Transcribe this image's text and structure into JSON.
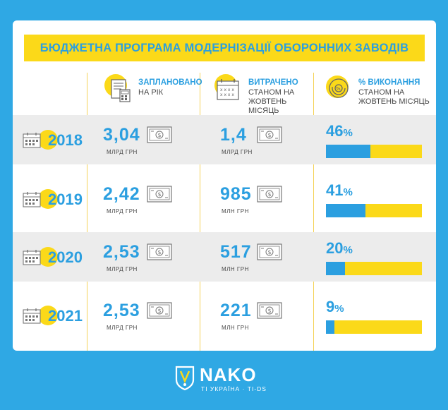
{
  "title": "БЮДЖЕТНА ПРОГРАМА МОДЕРНІЗАЦІЇ ОБОРОННИХ ЗАВОДІВ",
  "headers": {
    "planned": {
      "line1": "ЗАПЛАНОВАНО",
      "line2": "НА РІК"
    },
    "spent": {
      "line1": "ВИТРАЧЕНО",
      "line2": "СТАНОМ НА",
      "line3": "ЖОВТЕНЬ МІСЯЦЬ"
    },
    "progress": {
      "line1": "% ВИКОНАННЯ",
      "line2": "СТАНОМ НА",
      "line3": "ЖОВТЕНЬ МІСЯЦЬ"
    }
  },
  "rows": [
    {
      "year": "2018",
      "planned": "3,04",
      "planned_unit": "МЛРД ГРН",
      "spent": "1,4",
      "spent_unit": "МЛРД ГРН",
      "percent": "46",
      "percent_sign": "%",
      "percent_value": 46
    },
    {
      "year": "2019",
      "planned": "2,42",
      "planned_unit": "МЛРД ГРН",
      "spent": "985",
      "spent_unit": "МЛН ГРН",
      "percent": "41",
      "percent_sign": "%",
      "percent_value": 41
    },
    {
      "year": "2020",
      "planned": "2,53",
      "planned_unit": "МЛРД ГРН",
      "spent": "517",
      "spent_unit": "МЛН ГРН",
      "percent": "20",
      "percent_sign": "%",
      "percent_value": 20
    },
    {
      "year": "2021",
      "planned": "2,53",
      "planned_unit": "МЛРД ГРН",
      "spent": "221",
      "spent_unit": "МЛН ГРН",
      "percent": "9",
      "percent_sign": "%",
      "percent_value": 9
    }
  ],
  "logo": {
    "name": "NAKO",
    "subtitle": "TI УКРАЇНА · TI-DS"
  },
  "colors": {
    "background": "#2fa8e4",
    "accent_blue": "#2b9fe0",
    "accent_yellow": "#fbd919",
    "row_shade": "#ececec"
  },
  "icons": {
    "planned": "calculator-document-icon",
    "spent": "calendar-icon",
    "progress": "percent-dial-icon",
    "money": "banknote-icon",
    "year": "calendar-icon",
    "logo": "shield-icon"
  }
}
